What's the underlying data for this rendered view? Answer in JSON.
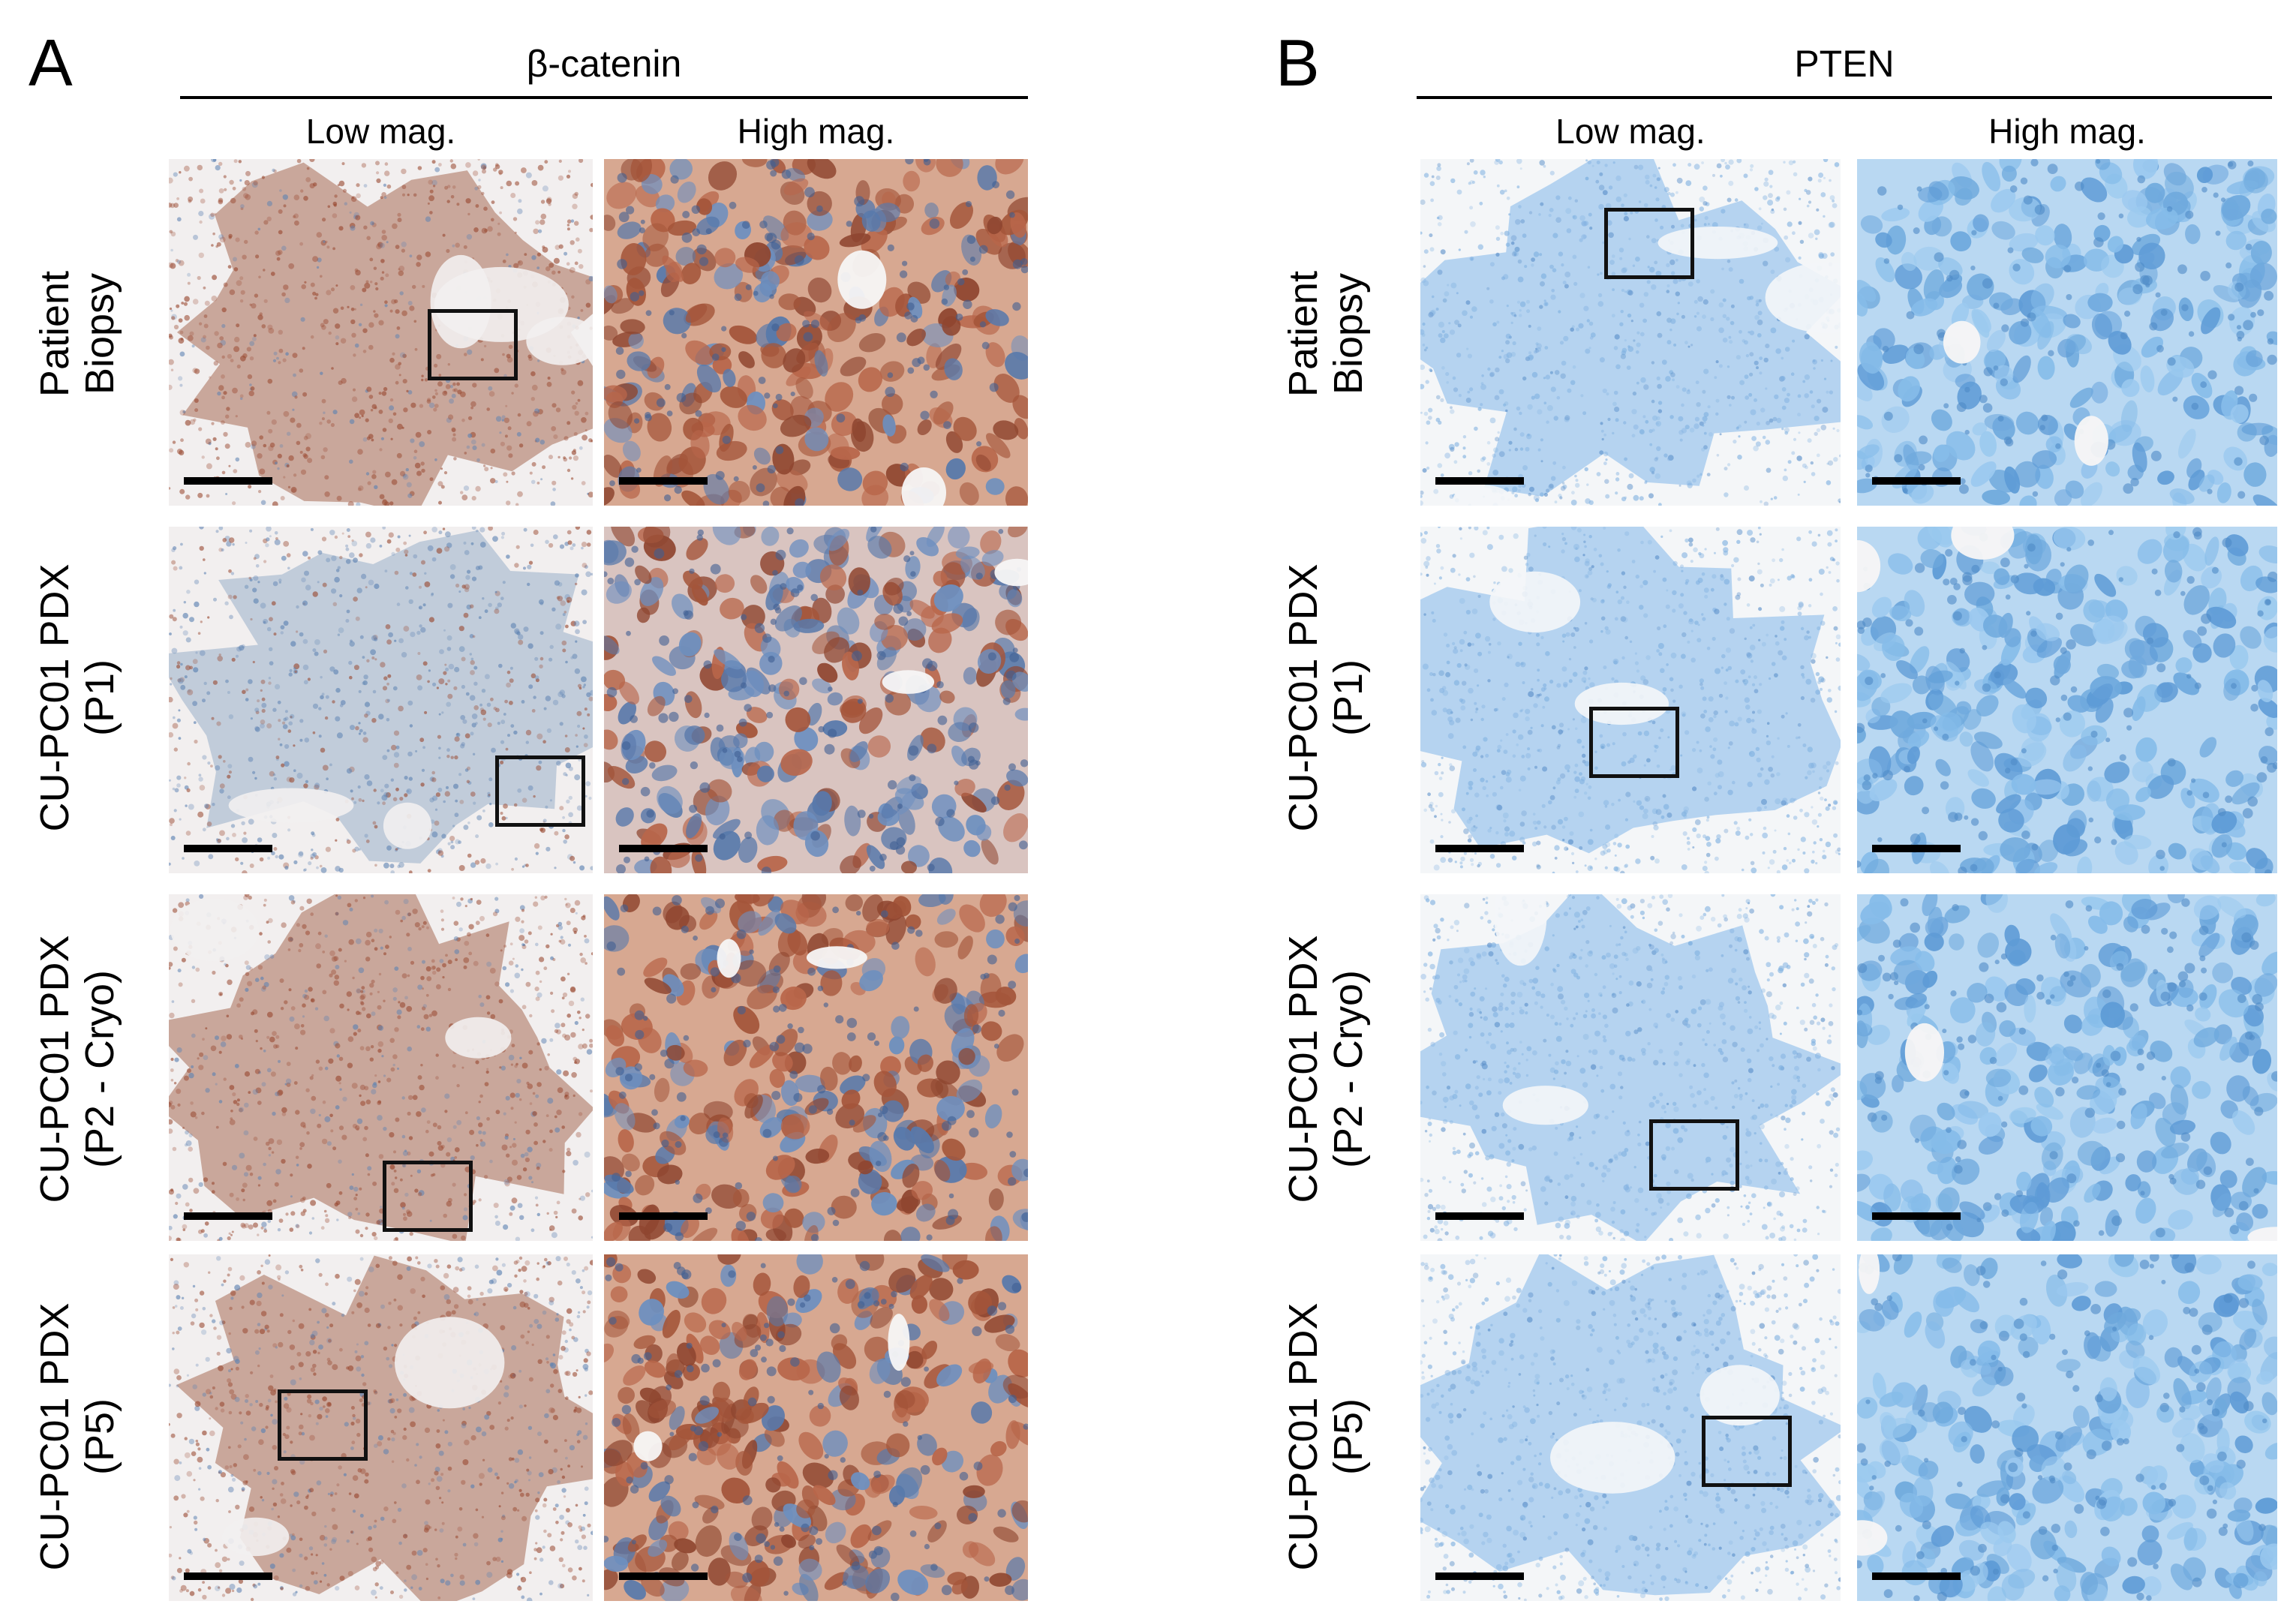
{
  "panels": [
    {
      "letter": "A",
      "marker": "β-catenin",
      "columns": [
        "Low mag.",
        "High  mag."
      ],
      "rows": [
        {
          "line1": "Patient",
          "line2": "Biopsy"
        },
        {
          "line1": "CU-PC01 PDX",
          "line2": "(P1)"
        },
        {
          "line1": "CU-PC01 PDX",
          "line2": "(P2 - Cryo)"
        },
        {
          "line1": "CU-PC01 PDX",
          "line2": "(P5)"
        }
      ],
      "stain_colors": {
        "dab": "#a9573d",
        "hematoxylin": "#5f86b8",
        "background": "#f2efef"
      }
    },
    {
      "letter": "B",
      "marker": "PTEN",
      "columns": [
        "Low mag.",
        "High  mag."
      ],
      "rows": [
        {
          "line1": "Patient",
          "line2": "Biopsy"
        },
        {
          "line1": "CU-PC01 PDX",
          "line2": "(P1)"
        },
        {
          "line1": "CU-PC01 PDX",
          "line2": "(P2 - Cryo)"
        },
        {
          "line1": "CU-PC01 PDX",
          "line2": "(P5)"
        }
      ],
      "stain_colors": {
        "hematoxylin": "#8fbde6",
        "background": "#f4f6f8"
      }
    }
  ]
}
